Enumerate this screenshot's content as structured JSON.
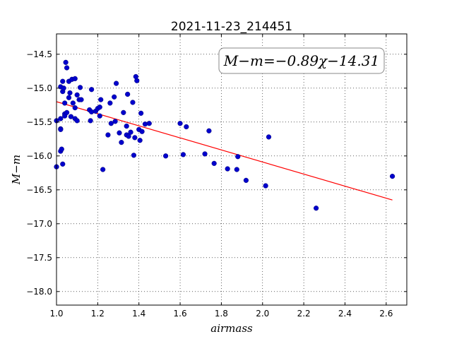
{
  "chart_data": {
    "type": "scatter",
    "title": "2021-11-23_214451",
    "xlabel": "airmass",
    "ylabel": "M−m",
    "xlim": [
      1.0,
      2.7
    ],
    "ylim": [
      -18.2,
      -14.2
    ],
    "y_inverted": true,
    "grid": true,
    "xticks": [
      1.0,
      1.2,
      1.4,
      1.6,
      1.8,
      2.0,
      2.2,
      2.4,
      2.6
    ],
    "xtick_labels": [
      "1.0",
      "1.2",
      "1.4",
      "1.6",
      "1.8",
      "2.0",
      "2.2",
      "2.4",
      "2.6"
    ],
    "yticks": [
      -14.5,
      -15.0,
      -15.5,
      -16.0,
      -16.5,
      -17.0,
      -17.5,
      -18.0
    ],
    "ytick_labels": [
      "−14.5",
      "−15.0",
      "−15.5",
      "−16.0",
      "−16.5",
      "−17.0",
      "−17.5",
      "−18.0"
    ],
    "annotation": "M−m=−0.89χ−14.31",
    "series": [
      {
        "type": "scatter",
        "color": "#0000cc",
        "points": [
          [
            1.0,
            -15.48
          ],
          [
            1.0,
            -16.16
          ],
          [
            1.02,
            -14.98
          ],
          [
            1.02,
            -15.45
          ],
          [
            1.02,
            -15.6
          ],
          [
            1.02,
            -15.61
          ],
          [
            1.02,
            -15.93
          ],
          [
            1.025,
            -15.9
          ],
          [
            1.03,
            -16.12
          ],
          [
            1.03,
            -14.9
          ],
          [
            1.03,
            -15.05
          ],
          [
            1.035,
            -15.0
          ],
          [
            1.04,
            -15.22
          ],
          [
            1.04,
            -15.38
          ],
          [
            1.04,
            -15.41
          ],
          [
            1.045,
            -14.62
          ],
          [
            1.05,
            -14.7
          ],
          [
            1.05,
            -15.36
          ],
          [
            1.06,
            -14.9
          ],
          [
            1.06,
            -15.14
          ],
          [
            1.065,
            -15.07
          ],
          [
            1.07,
            -15.42
          ],
          [
            1.075,
            -14.87
          ],
          [
            1.08,
            -15.22
          ],
          [
            1.09,
            -14.86
          ],
          [
            1.09,
            -15.29
          ],
          [
            1.09,
            -15.45
          ],
          [
            1.1,
            -15.1
          ],
          [
            1.1,
            -15.48
          ],
          [
            1.11,
            -15.17
          ],
          [
            1.115,
            -14.99
          ],
          [
            1.12,
            -15.17
          ],
          [
            1.16,
            -15.32
          ],
          [
            1.165,
            -15.48
          ],
          [
            1.17,
            -15.02
          ],
          [
            1.17,
            -15.35
          ],
          [
            1.19,
            -15.34
          ],
          [
            1.2,
            -15.3
          ],
          [
            1.21,
            -15.28
          ],
          [
            1.21,
            -15.41
          ],
          [
            1.215,
            -15.17
          ],
          [
            1.225,
            -16.2
          ],
          [
            1.25,
            -15.69
          ],
          [
            1.26,
            -15.22
          ],
          [
            1.265,
            -15.52
          ],
          [
            1.28,
            -15.13
          ],
          [
            1.285,
            -15.49
          ],
          [
            1.29,
            -14.93
          ],
          [
            1.305,
            -15.66
          ],
          [
            1.315,
            -15.8
          ],
          [
            1.325,
            -15.36
          ],
          [
            1.34,
            -15.56
          ],
          [
            1.34,
            -15.69
          ],
          [
            1.345,
            -15.09
          ],
          [
            1.35,
            -15.71
          ],
          [
            1.36,
            -15.65
          ],
          [
            1.37,
            -15.21
          ],
          [
            1.375,
            -15.99
          ],
          [
            1.38,
            -15.73
          ],
          [
            1.385,
            -14.83
          ],
          [
            1.39,
            -14.89
          ],
          [
            1.4,
            -15.61
          ],
          [
            1.405,
            -15.77
          ],
          [
            1.41,
            -15.37
          ],
          [
            1.415,
            -15.64
          ],
          [
            1.43,
            -15.53
          ],
          [
            1.45,
            -15.52
          ],
          [
            1.53,
            -16.0
          ],
          [
            1.6,
            -15.52
          ],
          [
            1.615,
            -15.98
          ],
          [
            1.63,
            -15.57
          ],
          [
            1.72,
            -15.97
          ],
          [
            1.74,
            -15.63
          ],
          [
            1.765,
            -16.11
          ],
          [
            1.83,
            -16.19
          ],
          [
            1.875,
            -16.2
          ],
          [
            1.88,
            -16.01
          ],
          [
            1.92,
            -16.36
          ],
          [
            2.015,
            -16.44
          ],
          [
            2.03,
            -15.72
          ],
          [
            2.26,
            -16.77
          ],
          [
            2.63,
            -16.3
          ]
        ]
      },
      {
        "type": "line",
        "color": "#ff0000",
        "points": [
          [
            1.0,
            -15.2
          ],
          [
            2.63,
            -16.65
          ]
        ]
      }
    ]
  }
}
